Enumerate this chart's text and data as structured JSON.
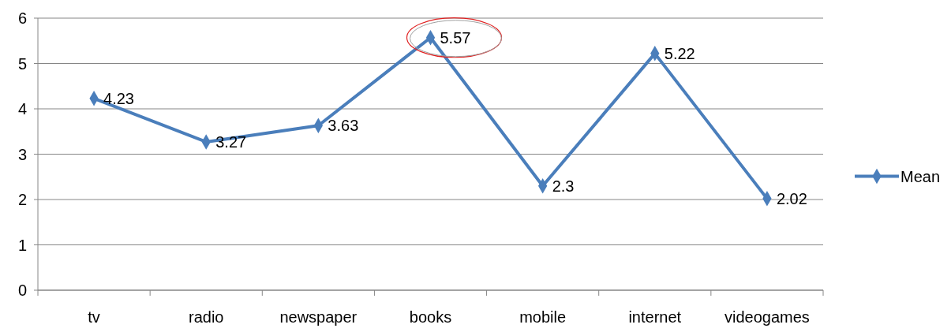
{
  "chart_data": {
    "type": "line",
    "categories": [
      "tv",
      "radio",
      "newspaper",
      "books",
      "mobile",
      "internet",
      "videogames"
    ],
    "series": [
      {
        "name": "Mean",
        "color": "#4a7ebb",
        "values": [
          4.23,
          3.27,
          3.63,
          5.57,
          2.3,
          5.22,
          2.02
        ]
      }
    ],
    "ylim": [
      0,
      6
    ],
    "yticks": [
      0,
      1,
      2,
      3,
      4,
      5,
      6
    ],
    "grid": "y",
    "legend": "right",
    "marker": "diamond",
    "line_style": "solid",
    "data_labels": true
  }
}
